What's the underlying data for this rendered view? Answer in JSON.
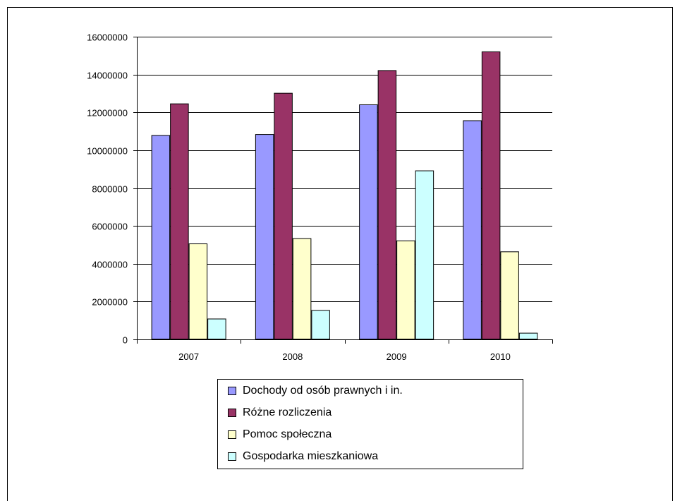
{
  "chart_data": {
    "type": "bar",
    "title": "",
    "xlabel": "",
    "ylabel": "",
    "categories": [
      "2007",
      "2008",
      "2009",
      "2010"
    ],
    "ylim": [
      0,
      16000000
    ],
    "y_ticks": [
      0,
      2000000,
      4000000,
      6000000,
      8000000,
      10000000,
      12000000,
      14000000,
      16000000
    ],
    "y_tick_labels": [
      "0",
      "2000000",
      "4000000",
      "6000000",
      "8000000",
      "10000000",
      "12000000",
      "14000000",
      "16000000"
    ],
    "grid": true,
    "legend_position": "bottom",
    "series": [
      {
        "name": "Dochody od osób prawnych i in.",
        "color": "#9999ff",
        "values": [
          10800000,
          10850000,
          12420000,
          11580000
        ]
      },
      {
        "name": "Różne rozliczenia",
        "color": "#993366",
        "values": [
          12470000,
          13030000,
          14230000,
          15220000
        ]
      },
      {
        "name": "Pomoc społeczna",
        "color": "#ffffcc",
        "values": [
          5070000,
          5350000,
          5230000,
          4650000
        ]
      },
      {
        "name": "Gospodarka mieszkaniowa",
        "color": "#ccffff",
        "values": [
          1100000,
          1550000,
          8930000,
          350000
        ]
      }
    ]
  }
}
